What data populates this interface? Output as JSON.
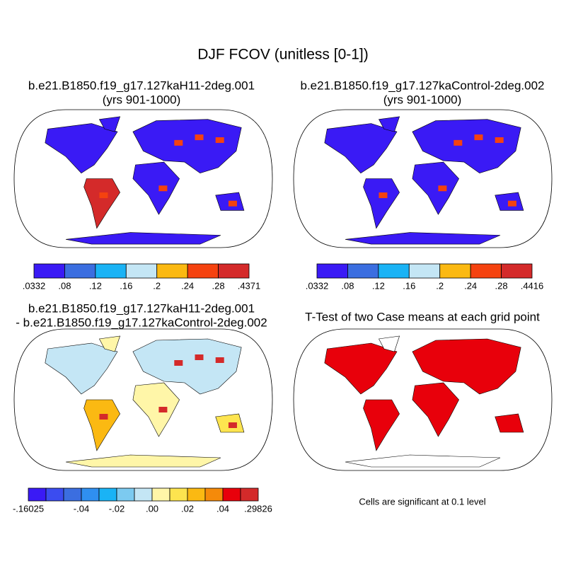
{
  "title": "DJF FCOV (unitless [0-1])",
  "panels": [
    {
      "title": [
        "b.e21.B1850.f19_g17.127kaH11-2deg.001",
        "(yrs 901-1000)"
      ],
      "colorbar": {
        "colors": [
          "#3a1af5",
          "#3b6ee0",
          "#1ab3f5",
          "#c4e6f5",
          "#fbb912",
          "#f5420f",
          "#d42a2a"
        ],
        "labels": [
          ".0332",
          ".08",
          ".12",
          ".16",
          ".2",
          ".24",
          ".28",
          ".4371"
        ]
      }
    },
    {
      "title": [
        "b.e21.B1850.f19_g17.127kaControl-2deg.002",
        "(yrs 901-1000)"
      ],
      "colorbar": {
        "colors": [
          "#3a1af5",
          "#3b6ee0",
          "#1ab3f5",
          "#c4e6f5",
          "#fbb912",
          "#f5420f",
          "#d42a2a"
        ],
        "labels": [
          ".0332",
          ".08",
          ".12",
          ".16",
          ".2",
          ".24",
          ".28",
          ".4416"
        ]
      }
    },
    {
      "title": [
        "b.e21.B1850.f19_g17.127kaH11-2deg.001",
        "- b.e21.B1850.f19_g17.127kaControl-2deg.002"
      ],
      "colorbar": {
        "colors": [
          "#3a1af5",
          "#3b4cf0",
          "#3b6ee0",
          "#2f8ff0",
          "#1ab3f5",
          "#7ccaf0",
          "#c4e6f5",
          "#fff6a8",
          "#fde44f",
          "#fbb912",
          "#f58a0a",
          "#e8000b",
          "#d42a2a"
        ],
        "labels": [
          "-.16025",
          null,
          null,
          "-.04",
          null,
          "-.02",
          null,
          ".00",
          null,
          ".02",
          null,
          ".04",
          null,
          ".29826"
        ]
      }
    },
    {
      "title": [
        "T-Test of two Case means at each grid point"
      ],
      "note": "Cells are significant at 0.1 level"
    }
  ]
}
